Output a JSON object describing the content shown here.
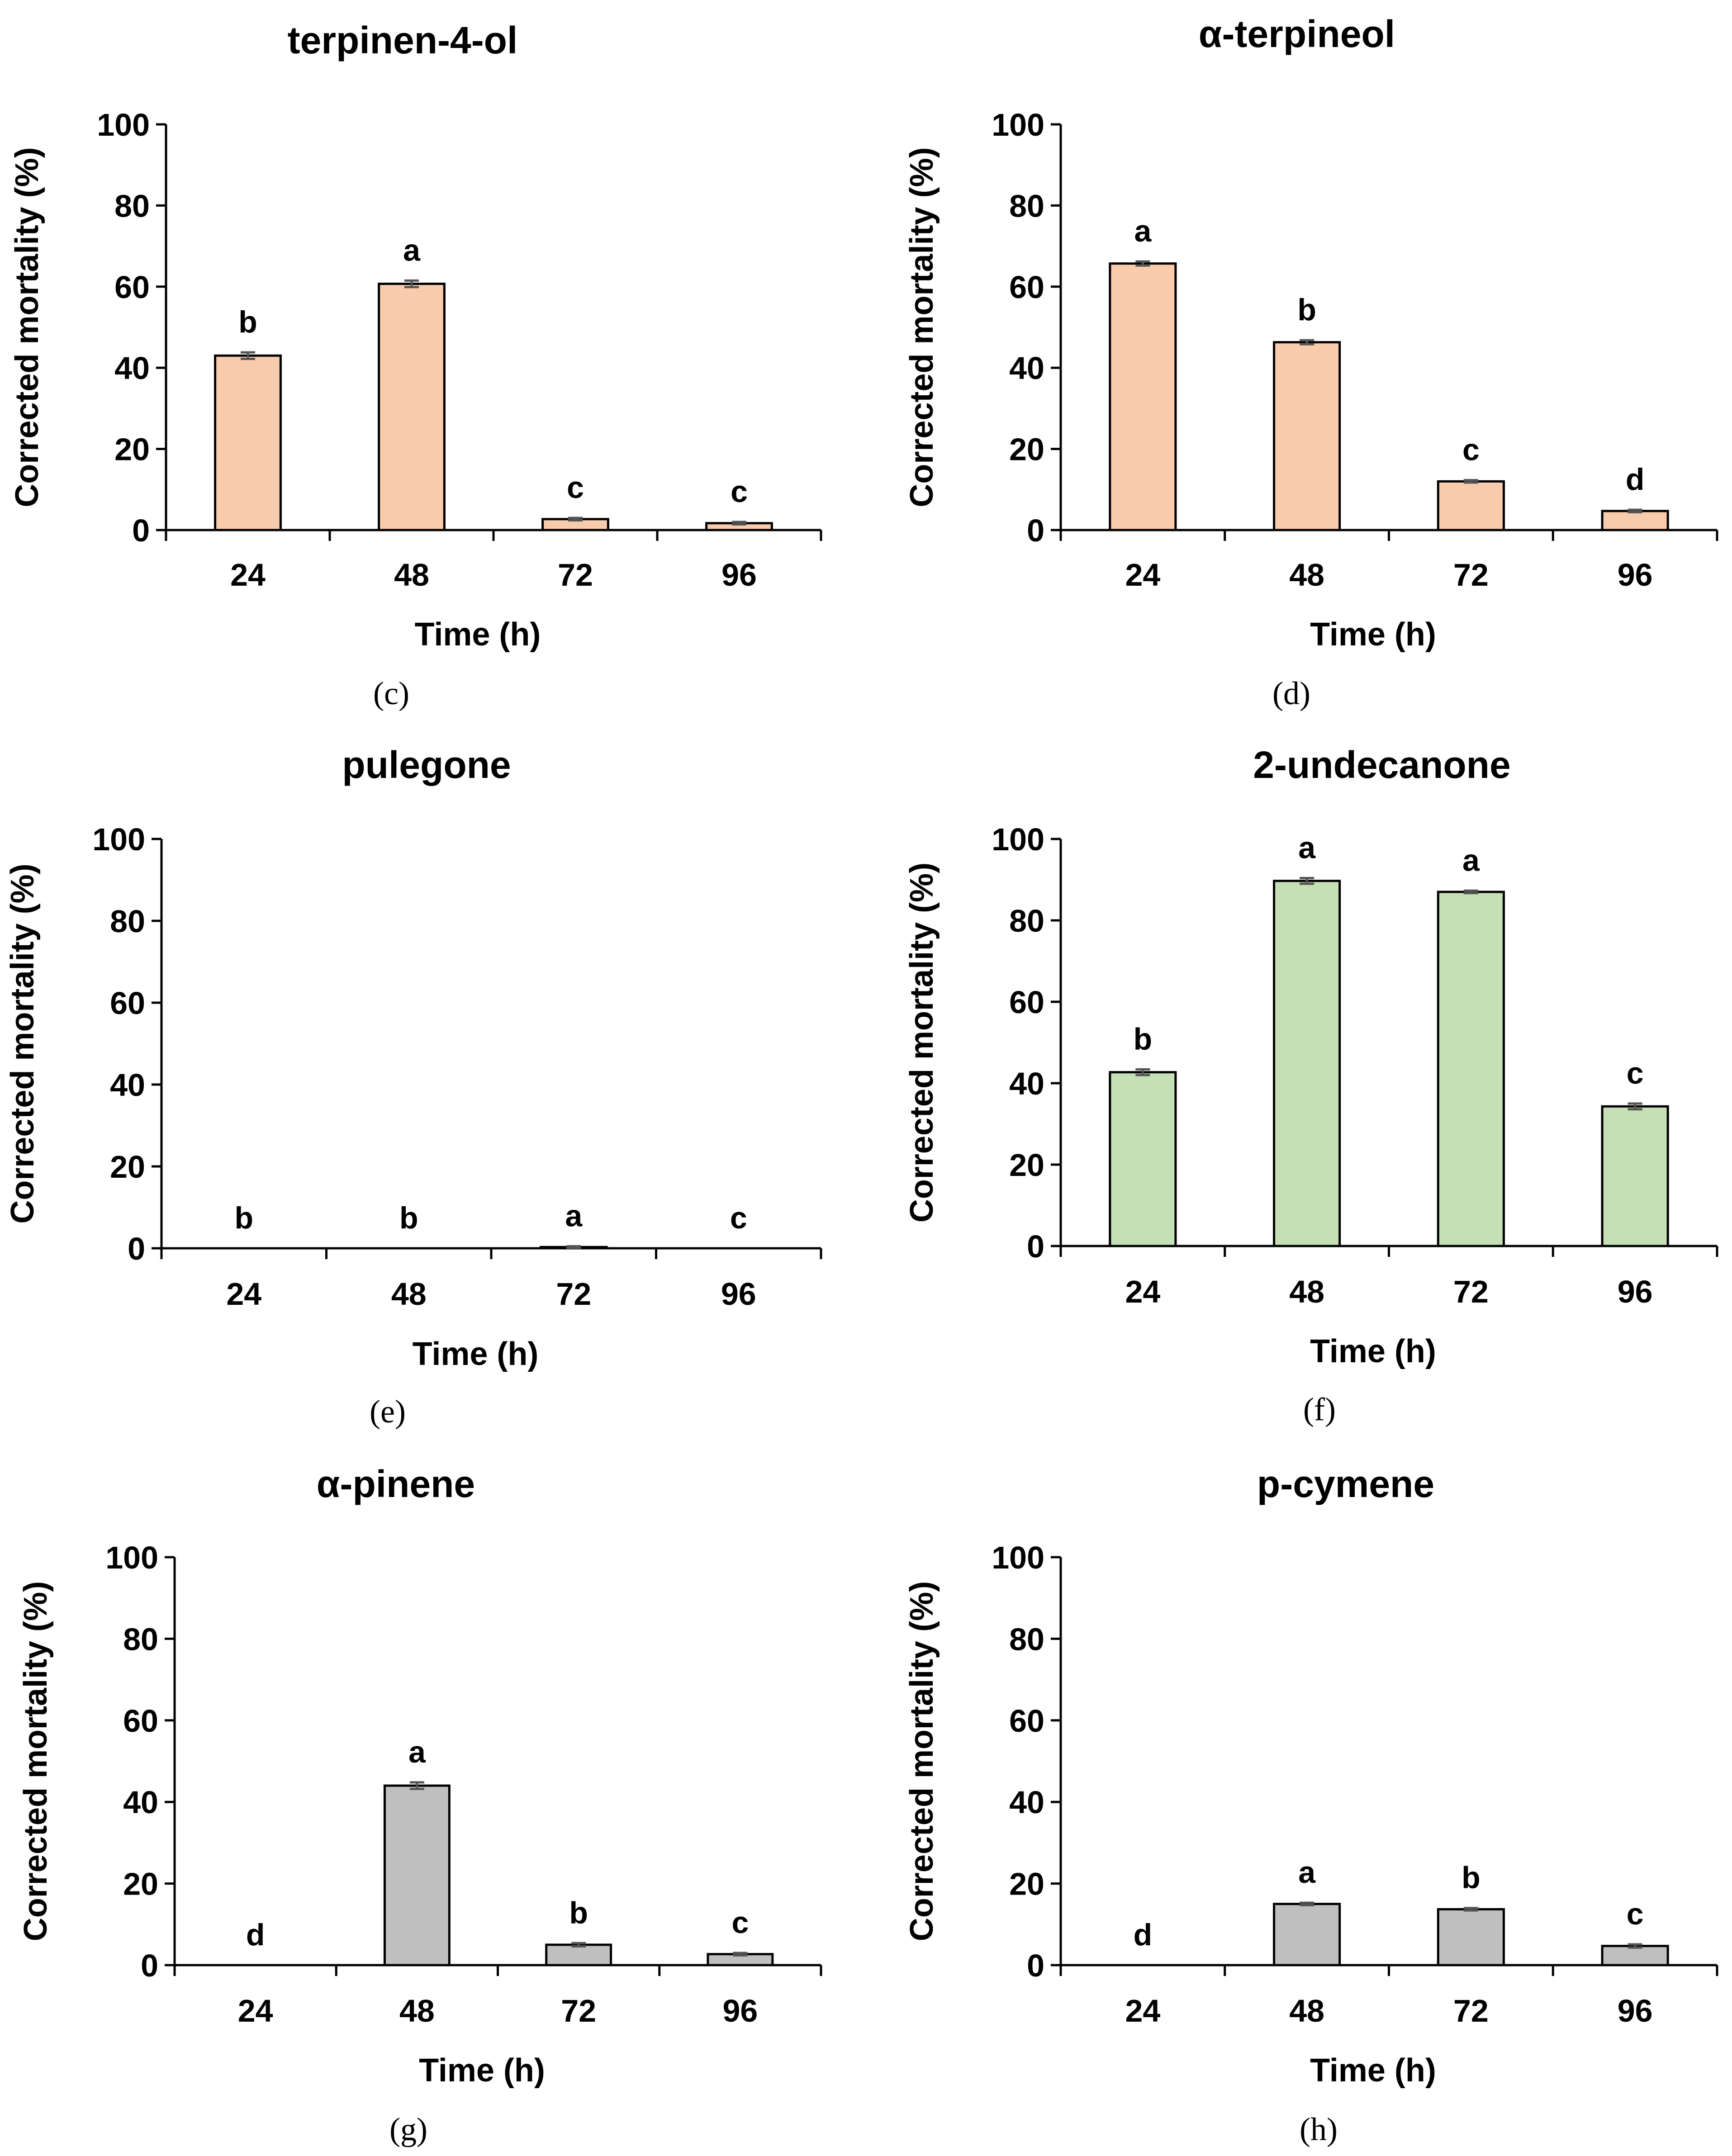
{
  "colors": {
    "orange": "#F8CBAD",
    "green": "#C5E0B4",
    "gray": "#BFBFBF"
  },
  "chart_data": [
    {
      "type": "bar",
      "title": "terpinen-4-ol",
      "panel": "(c)",
      "color": "orange",
      "categories": [
        "24",
        "48",
        "72",
        "96"
      ],
      "values": [
        43.0,
        60.7,
        2.7,
        1.7
      ],
      "errors": [
        0.8,
        0.8,
        0.3,
        0.3
      ],
      "letters": [
        "b",
        "a",
        "c",
        "c"
      ],
      "xlabel": "Time (h)",
      "ylabel": "Corrected mortality (%)",
      "ylim": [
        0,
        100
      ],
      "yticks": [
        "0",
        "20",
        "40",
        "60",
        "80",
        "100"
      ]
    },
    {
      "type": "bar",
      "title": "α-terpineol",
      "panel": "(d)",
      "color": "orange",
      "categories": [
        "24",
        "48",
        "72",
        "96"
      ],
      "values": [
        65.7,
        46.3,
        12.0,
        4.7
      ],
      "errors": [
        0.5,
        0.5,
        0.3,
        0.3
      ],
      "letters": [
        "a",
        "b",
        "c",
        "d"
      ],
      "xlabel": "Time (h)",
      "ylabel": "Corrected mortality (%)",
      "ylim": [
        0,
        100
      ],
      "yticks": [
        "0",
        "20",
        "40",
        "60",
        "80",
        "100"
      ]
    },
    {
      "type": "bar",
      "title": "pulegone",
      "panel": "(e)",
      "color": "orange",
      "categories": [
        "24",
        "48",
        "72",
        "96"
      ],
      "values": [
        0,
        0,
        0.3,
        0
      ],
      "errors": [
        0,
        0,
        0.2,
        0
      ],
      "letters": [
        "b",
        "b",
        "a",
        "c"
      ],
      "xlabel": "Time (h)",
      "ylabel": "Corrected mortality (%)",
      "ylim": [
        0,
        100
      ],
      "yticks": [
        "0",
        "20",
        "40",
        "60",
        "80",
        "100"
      ]
    },
    {
      "type": "bar",
      "title": "2-undecanone",
      "panel": "(f)",
      "color": "green",
      "categories": [
        "24",
        "48",
        "72",
        "96"
      ],
      "values": [
        42.7,
        89.7,
        87.0,
        34.3
      ],
      "errors": [
        0.7,
        0.7,
        0.3,
        0.7
      ],
      "letters": [
        "b",
        "a",
        "a",
        "c"
      ],
      "xlabel": "Time (h)",
      "ylabel": "Corrected mortality (%)",
      "ylim": [
        0,
        100
      ],
      "yticks": [
        "0",
        "20",
        "40",
        "60",
        "80",
        "100"
      ]
    },
    {
      "type": "bar",
      "title": "α-pinene",
      "panel": "(g)",
      "color": "gray",
      "categories": [
        "24",
        "48",
        "72",
        "96"
      ],
      "values": [
        0,
        44.0,
        5.0,
        2.7
      ],
      "errors": [
        0,
        0.8,
        0.4,
        0.3
      ],
      "letters": [
        "d",
        "a",
        "b",
        "c"
      ],
      "xlabel": "Time (h)",
      "ylabel": "Corrected mortality (%)",
      "ylim": [
        0,
        100
      ],
      "yticks": [
        "0",
        "20",
        "40",
        "60",
        "80",
        "100"
      ]
    },
    {
      "type": "bar",
      "title": "p-cymene",
      "panel": "(h)",
      "color": "gray",
      "categories": [
        "24",
        "48",
        "72",
        "96"
      ],
      "values": [
        0,
        15.0,
        13.7,
        4.7
      ],
      "errors": [
        0,
        0.3,
        0.3,
        0.4
      ],
      "letters": [
        "d",
        "a",
        "b",
        "c"
      ],
      "xlabel": "Time (h)",
      "ylabel": "Corrected mortality (%)",
      "ylim": [
        0,
        100
      ],
      "yticks": [
        "0",
        "20",
        "40",
        "60",
        "80",
        "100"
      ]
    }
  ]
}
